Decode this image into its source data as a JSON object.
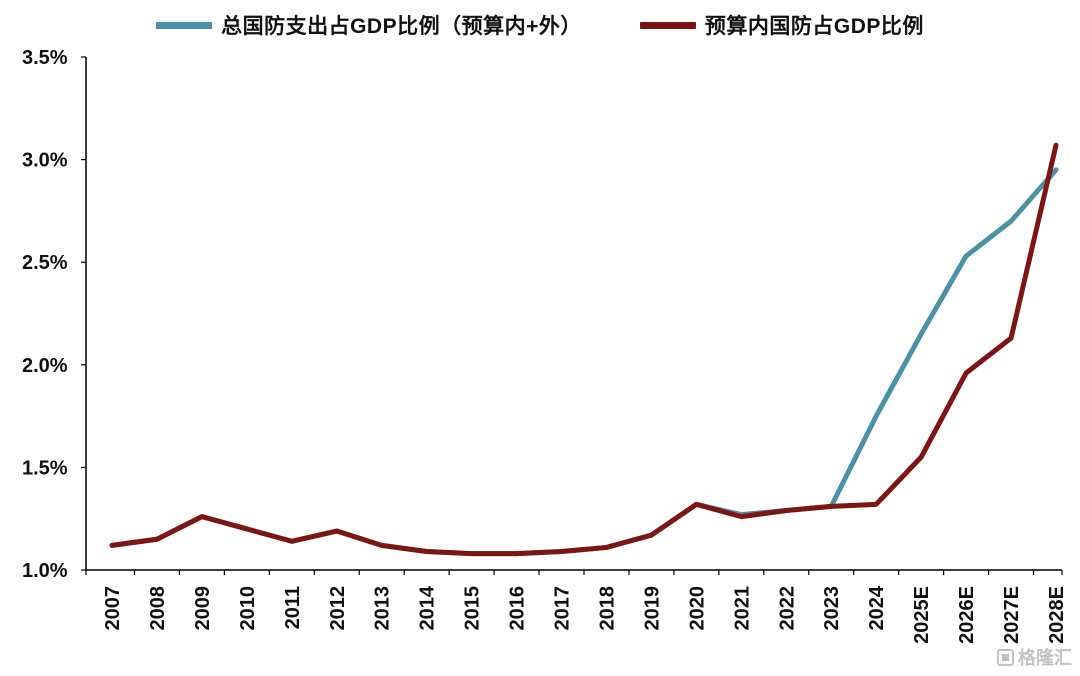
{
  "chart_data": {
    "type": "line",
    "categories": [
      "2007",
      "2008",
      "2009",
      "2010",
      "2011",
      "2012",
      "2013",
      "2014",
      "2015",
      "2016",
      "2017",
      "2018",
      "2019",
      "2020",
      "2021",
      "2022",
      "2023",
      "2024",
      "2025E",
      "2026E",
      "2027E",
      "2028E"
    ],
    "series": [
      {
        "name": "总国防支出占GDP比例（预算内+外）",
        "color": "#4a92a4",
        "values": [
          1.12,
          1.15,
          1.26,
          1.2,
          1.14,
          1.19,
          1.12,
          1.09,
          1.08,
          1.08,
          1.09,
          1.11,
          1.17,
          1.32,
          1.27,
          1.29,
          1.31,
          1.75,
          2.15,
          2.53,
          2.7,
          2.95
        ]
      },
      {
        "name": "预算内国防占GDP比例",
        "color": "#7d1416",
        "values": [
          1.12,
          1.15,
          1.26,
          1.2,
          1.14,
          1.19,
          1.12,
          1.09,
          1.08,
          1.08,
          1.09,
          1.11,
          1.17,
          1.32,
          1.26,
          1.29,
          1.31,
          1.32,
          1.55,
          1.96,
          2.13,
          3.07
        ]
      }
    ],
    "ylim": [
      1.0,
      3.5
    ],
    "yticks": [
      {
        "value": 1.0,
        "label": "1.0%"
      },
      {
        "value": 1.5,
        "label": "1.5%"
      },
      {
        "value": 2.0,
        "label": "2.0%"
      },
      {
        "value": 2.5,
        "label": "2.5%"
      },
      {
        "value": 3.0,
        "label": "3.0%"
      },
      {
        "value": 3.5,
        "label": "3.5%"
      }
    ],
    "xlabel": "",
    "ylabel": "",
    "title": "",
    "grid": false,
    "legend_position": "top",
    "axis_color": "#000000",
    "tick_label_color": "#111111"
  },
  "watermark": {
    "text": "格隆汇"
  }
}
